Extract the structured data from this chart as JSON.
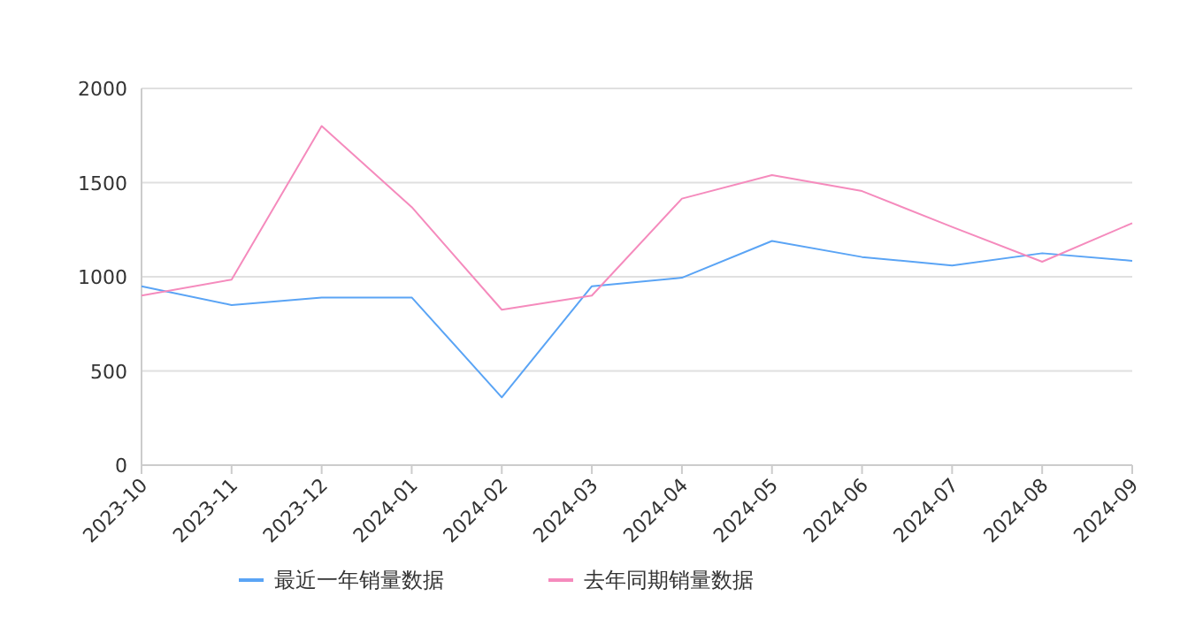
{
  "chart_data": {
    "type": "line",
    "categories": [
      "2023-10",
      "2023-11",
      "2023-12",
      "2024-01",
      "2024-02",
      "2024-03",
      "2024-04",
      "2024-05",
      "2024-06",
      "2024-07",
      "2024-08",
      "2024-09"
    ],
    "series": [
      {
        "name": "最近一年销量数据",
        "color": "#5aa4f5",
        "values": [
          950,
          850,
          890,
          890,
          360,
          950,
          995,
          1190,
          1105,
          1060,
          1125,
          1085
        ]
      },
      {
        "name": "去年同期销量数据",
        "color": "#f58bbd",
        "values": [
          900,
          985,
          1800,
          1370,
          825,
          900,
          1415,
          1540,
          1455,
          1265,
          1080,
          1285
        ]
      }
    ],
    "ylim": [
      0,
      2000
    ],
    "yticks": [
      0,
      500,
      1000,
      1500,
      2000
    ],
    "grid": "y",
    "legend": "bottom",
    "marker": "none",
    "line_style": "solid"
  }
}
